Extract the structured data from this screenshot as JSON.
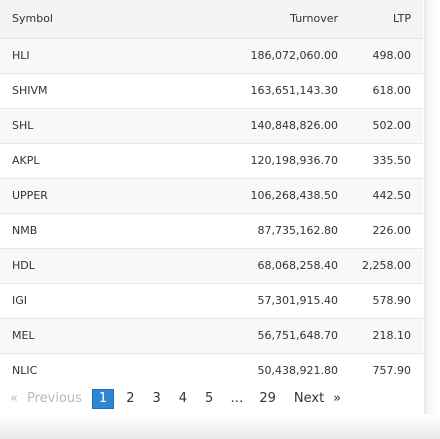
{
  "table": {
    "headers": {
      "symbol": "Symbol",
      "turnover": "Turnover",
      "ltp": "LTP"
    },
    "rows": [
      {
        "symbol": "HLI",
        "turnover": "186,072,060.00",
        "ltp": "498.00"
      },
      {
        "symbol": "SHIVM",
        "turnover": "163,651,143.30",
        "ltp": "618.00"
      },
      {
        "symbol": "SHL",
        "turnover": "140,848,826.00",
        "ltp": "502.00"
      },
      {
        "symbol": "AKPL",
        "turnover": "120,198,936.70",
        "ltp": "335.50"
      },
      {
        "symbol": "UPPER",
        "turnover": "106,268,438.50",
        "ltp": "442.50"
      },
      {
        "symbol": "NMB",
        "turnover": "87,735,162.80",
        "ltp": "226.00"
      },
      {
        "symbol": "HDL",
        "turnover": "68,068,258.40",
        "ltp": "2,258.00"
      },
      {
        "symbol": "IGI",
        "turnover": "57,301,915.40",
        "ltp": "578.90"
      },
      {
        "symbol": "MEL",
        "turnover": "56,751,648.70",
        "ltp": "218.10"
      },
      {
        "symbol": "NLIC",
        "turnover": "50,438,921.80",
        "ltp": "757.90"
      }
    ]
  },
  "pagination": {
    "prev_arrow": "«",
    "previous": "Previous",
    "pages": [
      "1",
      "2",
      "3",
      "4",
      "5"
    ],
    "ellipsis": "…",
    "last_page": "29",
    "next": "Next",
    "next_arrow": "»",
    "current": "1"
  }
}
